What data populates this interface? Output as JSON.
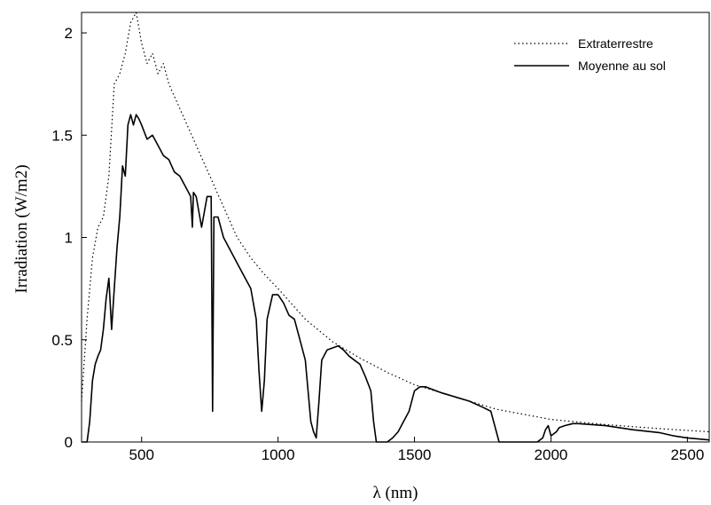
{
  "chart_data": {
    "type": "line",
    "title": "",
    "xlabel": "λ (nm)",
    "ylabel": "Irradiation (W/m2)",
    "xlim": [
      280,
      2580
    ],
    "ylim": [
      0,
      2.1
    ],
    "x_ticks": [
      500,
      1000,
      1500,
      2000,
      2500
    ],
    "x_tick_labels": [
      "500",
      "1000",
      "1500",
      "2000",
      "2500"
    ],
    "y_ticks": [
      0,
      0.5,
      1,
      1.5,
      2
    ],
    "y_tick_labels": [
      "0",
      "0.5",
      "1",
      "1.5",
      "2"
    ],
    "grid": false,
    "legend_position": "top-right",
    "series": [
      {
        "name": "Extraterrestre",
        "style": "dotted",
        "color": "#000000",
        "x": [
          280,
          300,
          320,
          340,
          360,
          380,
          400,
          420,
          440,
          460,
          480,
          500,
          520,
          540,
          560,
          580,
          600,
          650,
          700,
          750,
          800,
          850,
          900,
          950,
          1000,
          1100,
          1200,
          1300,
          1400,
          1500,
          1600,
          1800,
          2000,
          2200,
          2400,
          2580
        ],
        "values": [
          0.2,
          0.6,
          0.9,
          1.05,
          1.1,
          1.3,
          1.75,
          1.8,
          1.9,
          2.05,
          2.1,
          1.95,
          1.85,
          1.9,
          1.8,
          1.85,
          1.75,
          1.6,
          1.45,
          1.3,
          1.15,
          1.0,
          0.9,
          0.82,
          0.75,
          0.6,
          0.49,
          0.41,
          0.34,
          0.28,
          0.24,
          0.16,
          0.11,
          0.085,
          0.065,
          0.05
        ]
      },
      {
        "name": "Moyenne au sol",
        "style": "solid",
        "color": "#000000",
        "x": [
          280,
          300,
          305,
          310,
          320,
          330,
          340,
          350,
          360,
          370,
          380,
          390,
          400,
          410,
          420,
          430,
          440,
          450,
          460,
          470,
          480,
          490,
          500,
          520,
          540,
          560,
          580,
          600,
          620,
          640,
          660,
          680,
          686,
          690,
          700,
          720,
          740,
          755,
          760,
          765,
          780,
          800,
          820,
          840,
          860,
          880,
          900,
          920,
          930,
          940,
          950,
          960,
          980,
          1000,
          1020,
          1040,
          1060,
          1080,
          1100,
          1110,
          1120,
          1130,
          1140,
          1150,
          1160,
          1180,
          1200,
          1220,
          1240,
          1260,
          1280,
          1300,
          1320,
          1340,
          1350,
          1360,
          1380,
          1400,
          1420,
          1440,
          1460,
          1480,
          1500,
          1520,
          1540,
          1560,
          1600,
          1650,
          1700,
          1750,
          1780,
          1800,
          1810,
          1820,
          1900,
          1950,
          1970,
          1980,
          1990,
          2000,
          2020,
          2030,
          2050,
          2080,
          2100,
          2150,
          2200,
          2300,
          2400,
          2450,
          2500,
          2580
        ],
        "values": [
          0,
          0,
          0.05,
          0.1,
          0.3,
          0.38,
          0.42,
          0.45,
          0.55,
          0.7,
          0.8,
          0.55,
          0.75,
          0.95,
          1.1,
          1.35,
          1.3,
          1.55,
          1.6,
          1.55,
          1.6,
          1.58,
          1.55,
          1.48,
          1.5,
          1.45,
          1.4,
          1.38,
          1.32,
          1.3,
          1.25,
          1.2,
          1.05,
          1.22,
          1.2,
          1.05,
          1.2,
          1.2,
          0.15,
          1.1,
          1.1,
          1.0,
          0.95,
          0.9,
          0.85,
          0.8,
          0.75,
          0.6,
          0.35,
          0.15,
          0.3,
          0.6,
          0.72,
          0.72,
          0.68,
          0.62,
          0.6,
          0.5,
          0.4,
          0.25,
          0.1,
          0.05,
          0.02,
          0.2,
          0.4,
          0.45,
          0.46,
          0.47,
          0.45,
          0.42,
          0.4,
          0.38,
          0.32,
          0.25,
          0.1,
          0,
          0,
          0,
          0.02,
          0.05,
          0.1,
          0.15,
          0.25,
          0.27,
          0.27,
          0.26,
          0.24,
          0.22,
          0.2,
          0.17,
          0.15,
          0.05,
          0,
          0,
          0,
          0,
          0.02,
          0.06,
          0.08,
          0.03,
          0.05,
          0.07,
          0.08,
          0.09,
          0.09,
          0.085,
          0.08,
          0.06,
          0.045,
          0.03,
          0.02,
          0.01
        ]
      }
    ]
  }
}
